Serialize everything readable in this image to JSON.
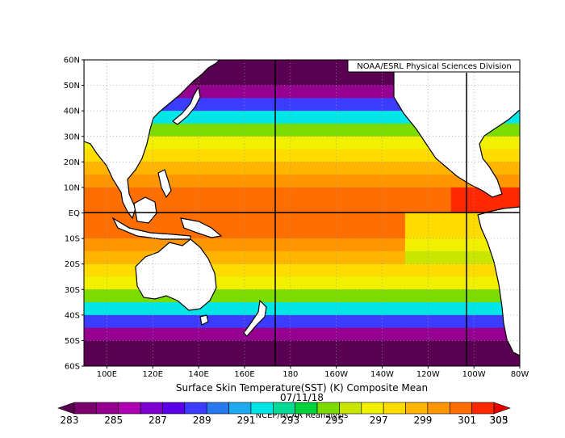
{
  "map": {
    "credit": "NOAA/ESRL Physical Sciences Division",
    "title": "Surface Skin Temperature(SST) (K) Composite Mean",
    "date": "07/11/18",
    "source": "NCEP/NCAR Reanalysis",
    "lon_range": [
      90,
      280
    ],
    "lat_range": [
      -60,
      60
    ],
    "lat_ticks": [
      "60N",
      "50N",
      "40N",
      "30N",
      "20N",
      "10N",
      "EQ",
      "10S",
      "20S",
      "30S",
      "40S",
      "50S",
      "60S"
    ],
    "lon_ticks": [
      "100E",
      "120E",
      "140E",
      "160E",
      "180",
      "160W",
      "140W",
      "120W",
      "100W",
      "80W"
    ],
    "lat_tick_values": [
      60,
      50,
      40,
      30,
      20,
      10,
      0,
      -10,
      -20,
      -30,
      -40,
      -50,
      -60
    ],
    "lon_tick_values": [
      100,
      120,
      140,
      160,
      180,
      200,
      220,
      240,
      260,
      280
    ]
  },
  "colorbar": {
    "colors": [
      "#5a0052",
      "#7a006e",
      "#960090",
      "#b000b4",
      "#7d00d0",
      "#5a00e6",
      "#3c3cff",
      "#2878f0",
      "#1eaaf0",
      "#00e6e6",
      "#00dc96",
      "#00d23c",
      "#7cdc00",
      "#c8e600",
      "#f0f000",
      "#ffdc00",
      "#ffb400",
      "#ff9600",
      "#ff6e00",
      "#ff2800",
      "#e60000"
    ],
    "labels": [
      "283",
      "285",
      "287",
      "289",
      "291",
      "293",
      "295",
      "297",
      "299",
      "301",
      "303",
      "305"
    ]
  }
}
